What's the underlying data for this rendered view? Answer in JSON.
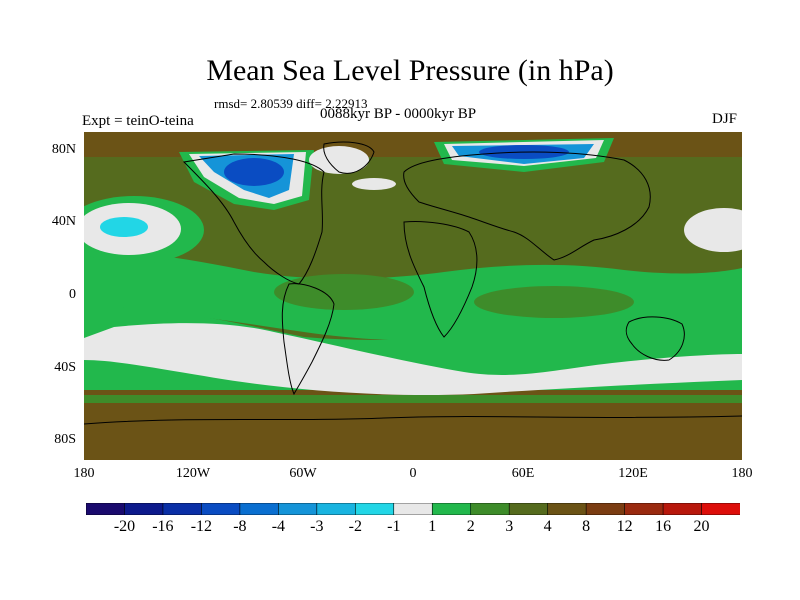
{
  "title": "Mean Sea Level Pressure (in hPa)",
  "stats": "rmsd= 2.80539 diff= 2.22913",
  "period": "0088kyr BP - 0000kyr BP",
  "experiment": "Expt = teinO-teina",
  "season": "DJF",
  "map": {
    "projection": "cylindrical equidistant",
    "lat_ticks": [
      "80N",
      "40N",
      "0",
      "40S",
      "80S"
    ],
    "lon_ticks": [
      "180",
      "120W",
      "60W",
      "0",
      "60E",
      "120E",
      "180"
    ]
  },
  "colorbar": {
    "colors": [
      "#1a0a6e",
      "#0d1a8c",
      "#0a2fa6",
      "#0a4cc2",
      "#0a6fd0",
      "#1594d8",
      "#19b4e0",
      "#22d6e6",
      "#e8e8e8",
      "#22b84c",
      "#3e8c2a",
      "#556b1e",
      "#6b5316",
      "#7b3d12",
      "#9a2a10",
      "#b8180c",
      "#dd0e0a"
    ],
    "labels": [
      "-20",
      "-16",
      "-12",
      "-8",
      "-4",
      "-3",
      "-2",
      "-1",
      "1",
      "2",
      "3",
      "4",
      "8",
      "12",
      "16",
      "20"
    ]
  }
}
